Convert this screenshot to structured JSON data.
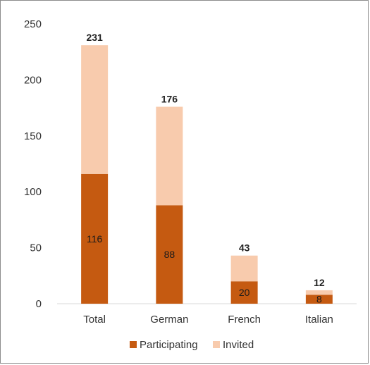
{
  "chart_data": {
    "type": "bar",
    "stacked": true,
    "categories": [
      "Total",
      "German",
      "French",
      "Italian"
    ],
    "series": [
      {
        "name": "Participating",
        "values": [
          116,
          88,
          20,
          8
        ],
        "color": "#c55a11"
      },
      {
        "name": "Invited",
        "values": [
          115,
          88,
          23,
          4
        ],
        "color": "#f8cbad"
      }
    ],
    "totals": [
      231,
      176,
      43,
      12
    ],
    "participating_labels": [
      "116",
      "88",
      "20",
      "8"
    ],
    "total_labels": [
      "231",
      "176",
      "43",
      "12"
    ],
    "y_ticks": [
      "0",
      "50",
      "100",
      "150",
      "200",
      "250"
    ],
    "ylim": [
      0,
      250
    ],
    "grid": false,
    "legend_position": "bottom"
  }
}
